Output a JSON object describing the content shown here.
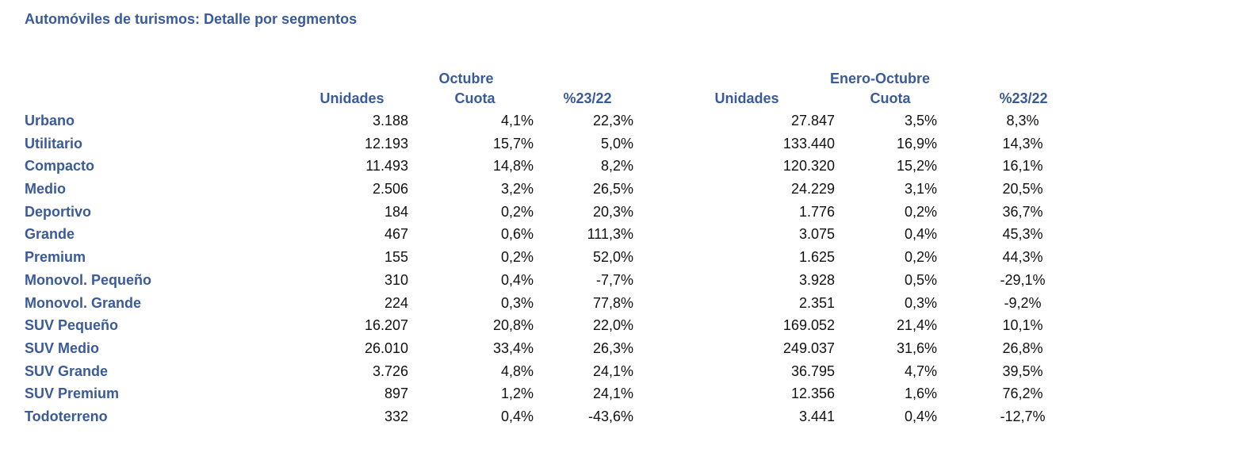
{
  "title": "Automóviles de turismos: Detalle por segmentos",
  "headers": {
    "october_group": "Octubre",
    "ytd_group": "Enero-Octubre",
    "units": "Unidades",
    "share": "Cuota",
    "change": "%23/22"
  },
  "rows": [
    {
      "segment": "Urbano",
      "oct_units": "3.188",
      "oct_share": "4,1%",
      "oct_change": "22,3%",
      "ytd_units": "27.847",
      "ytd_share": "3,5%",
      "ytd_change": "8,3%"
    },
    {
      "segment": "Utilitario",
      "oct_units": "12.193",
      "oct_share": "15,7%",
      "oct_change": "5,0%",
      "ytd_units": "133.440",
      "ytd_share": "16,9%",
      "ytd_change": "14,3%"
    },
    {
      "segment": "Compacto",
      "oct_units": "11.493",
      "oct_share": "14,8%",
      "oct_change": "8,2%",
      "ytd_units": "120.320",
      "ytd_share": "15,2%",
      "ytd_change": "16,1%"
    },
    {
      "segment": "Medio",
      "oct_units": "2.506",
      "oct_share": "3,2%",
      "oct_change": "26,5%",
      "ytd_units": "24.229",
      "ytd_share": "3,1%",
      "ytd_change": "20,5%"
    },
    {
      "segment": "Deportivo",
      "oct_units": "184",
      "oct_share": "0,2%",
      "oct_change": "20,3%",
      "ytd_units": "1.776",
      "ytd_share": "0,2%",
      "ytd_change": "36,7%"
    },
    {
      "segment": "Grande",
      "oct_units": "467",
      "oct_share": "0,6%",
      "oct_change": "111,3%",
      "ytd_units": "3.075",
      "ytd_share": "0,4%",
      "ytd_change": "45,3%"
    },
    {
      "segment": "Premium",
      "oct_units": "155",
      "oct_share": "0,2%",
      "oct_change": "52,0%",
      "ytd_units": "1.625",
      "ytd_share": "0,2%",
      "ytd_change": "44,3%"
    },
    {
      "segment": "Monovol. Pequeño",
      "oct_units": "310",
      "oct_share": "0,4%",
      "oct_change": "-7,7%",
      "ytd_units": "3.928",
      "ytd_share": "0,5%",
      "ytd_change": "-29,1%"
    },
    {
      "segment": "Monovol. Grande",
      "oct_units": "224",
      "oct_share": "0,3%",
      "oct_change": "77,8%",
      "ytd_units": "2.351",
      "ytd_share": "0,3%",
      "ytd_change": "-9,2%"
    },
    {
      "segment": "SUV Pequeño",
      "oct_units": "16.207",
      "oct_share": "20,8%",
      "oct_change": "22,0%",
      "ytd_units": "169.052",
      "ytd_share": "21,4%",
      "ytd_change": "10,1%"
    },
    {
      "segment": "SUV Medio",
      "oct_units": "26.010",
      "oct_share": "33,4%",
      "oct_change": "26,3%",
      "ytd_units": "249.037",
      "ytd_share": "31,6%",
      "ytd_change": "26,8%"
    },
    {
      "segment": "SUV Grande",
      "oct_units": "3.726",
      "oct_share": "4,8%",
      "oct_change": "24,1%",
      "ytd_units": "36.795",
      "ytd_share": "4,7%",
      "ytd_change": "39,5%"
    },
    {
      "segment": "SUV Premium",
      "oct_units": "897",
      "oct_share": "1,2%",
      "oct_change": "24,1%",
      "ytd_units": "12.356",
      "ytd_share": "1,6%",
      "ytd_change": "76,2%"
    },
    {
      "segment": "Todoterreno",
      "oct_units": "332",
      "oct_share": "0,4%",
      "oct_change": "-43,6%",
      "ytd_units": "3.441",
      "ytd_share": "0,4%",
      "ytd_change": "-12,7%"
    }
  ],
  "colors": {
    "heading": "#3a5a9a",
    "text": "#111111"
  }
}
